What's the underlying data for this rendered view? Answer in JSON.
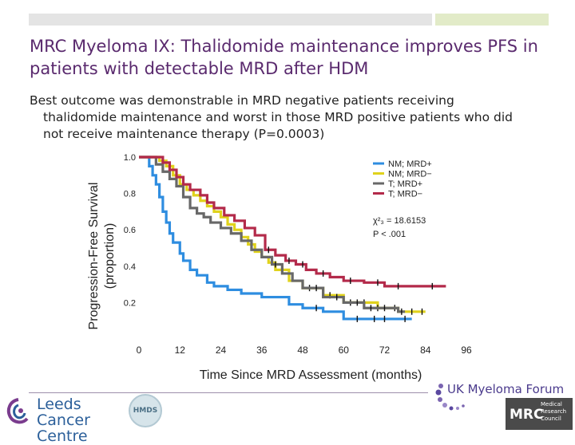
{
  "slide": {
    "title": "MRC Myeloma IX: Thalidomide maintenance improves PFS in patients with detectable MRD after HDM",
    "subtitle_lines": [
      "Best outcome was demonstrable in MRD negative patients receiving",
      "thalidomide maintenance and worst in those MRD positive patients who did",
      "not receive maintenance therapy (P=0.0003)"
    ]
  },
  "colors": {
    "nm_mrd_pos": "#2e8de0",
    "nm_mrd_neg": "#e0d21c",
    "t_mrd_pos": "#686868",
    "t_mrd_neg": "#b32a4a",
    "title": "#5a2a6e"
  },
  "chart_data": {
    "type": "line",
    "subtype": "kaplan-meier",
    "xlabel": "Time Since MRD Assessment (months)",
    "ylabel": [
      "Progression-Free Survival",
      "(proportion)"
    ],
    "xlim": [
      0,
      96
    ],
    "ylim": [
      0,
      1.0
    ],
    "x_ticks": [
      0,
      12,
      24,
      36,
      48,
      60,
      72,
      84,
      96
    ],
    "y_ticks": [
      0.2,
      0.4,
      0.6,
      0.8,
      1.0
    ],
    "x_tick_labels": [
      "0",
      "12",
      "24",
      "36",
      "48",
      "60",
      "72",
      "84",
      "96"
    ],
    "y_tick_labels": [
      "0.2",
      "0.4",
      "0.6",
      "0.8",
      "1.0"
    ],
    "legend_position": "top-right",
    "series": [
      {
        "name": "NM; MRD+",
        "color_key": "nm_mrd_pos",
        "points": [
          [
            0,
            1.0
          ],
          [
            2,
            1.0
          ],
          [
            3,
            0.95
          ],
          [
            4,
            0.9
          ],
          [
            5,
            0.85
          ],
          [
            6,
            0.78
          ],
          [
            7,
            0.7
          ],
          [
            8,
            0.64
          ],
          [
            9,
            0.58
          ],
          [
            10,
            0.53
          ],
          [
            12,
            0.47
          ],
          [
            13,
            0.43
          ],
          [
            15,
            0.38
          ],
          [
            17,
            0.35
          ],
          [
            20,
            0.31
          ],
          [
            22,
            0.29
          ],
          [
            26,
            0.27
          ],
          [
            30,
            0.25
          ],
          [
            36,
            0.23
          ],
          [
            44,
            0.19
          ],
          [
            48,
            0.17
          ],
          [
            54,
            0.15
          ],
          [
            60,
            0.11
          ],
          [
            80,
            0.11
          ]
        ],
        "censor_x": [
          52,
          64,
          69,
          72,
          78
        ]
      },
      {
        "name": "NM; MRD−",
        "color_key": "nm_mrd_neg",
        "points": [
          [
            0,
            1.0
          ],
          [
            4,
            1.0
          ],
          [
            6,
            0.98
          ],
          [
            8,
            0.95
          ],
          [
            10,
            0.9
          ],
          [
            12,
            0.85
          ],
          [
            14,
            0.82
          ],
          [
            16,
            0.79
          ],
          [
            18,
            0.76
          ],
          [
            20,
            0.73
          ],
          [
            22,
            0.7
          ],
          [
            24,
            0.67
          ],
          [
            26,
            0.63
          ],
          [
            28,
            0.6
          ],
          [
            30,
            0.56
          ],
          [
            32,
            0.52
          ],
          [
            34,
            0.48
          ],
          [
            36,
            0.45
          ],
          [
            38,
            0.42
          ],
          [
            40,
            0.38
          ],
          [
            44,
            0.32
          ],
          [
            48,
            0.28
          ],
          [
            54,
            0.24
          ],
          [
            60,
            0.2
          ],
          [
            70,
            0.17
          ],
          [
            76,
            0.15
          ],
          [
            84,
            0.15
          ]
        ],
        "censor_x": [
          50,
          56,
          62,
          66,
          70,
          75,
          80,
          83
        ]
      },
      {
        "name": "T; MRD+",
        "color_key": "t_mrd_pos",
        "points": [
          [
            0,
            1.0
          ],
          [
            3,
            1.0
          ],
          [
            5,
            0.96
          ],
          [
            7,
            0.92
          ],
          [
            9,
            0.88
          ],
          [
            11,
            0.84
          ],
          [
            13,
            0.78
          ],
          [
            15,
            0.72
          ],
          [
            17,
            0.69
          ],
          [
            19,
            0.67
          ],
          [
            21,
            0.64
          ],
          [
            24,
            0.61
          ],
          [
            27,
            0.58
          ],
          [
            30,
            0.54
          ],
          [
            33,
            0.49
          ],
          [
            36,
            0.45
          ],
          [
            39,
            0.41
          ],
          [
            42,
            0.36
          ],
          [
            45,
            0.32
          ],
          [
            48,
            0.28
          ],
          [
            54,
            0.23
          ],
          [
            60,
            0.2
          ],
          [
            66,
            0.17
          ],
          [
            76,
            0.15
          ],
          [
            78,
            0.15
          ]
        ],
        "censor_x": [
          40,
          52,
          58,
          64,
          68,
          72,
          77
        ]
      },
      {
        "name": "T; MRD−",
        "color_key": "t_mrd_neg",
        "points": [
          [
            0,
            1.0
          ],
          [
            5,
            1.0
          ],
          [
            7,
            0.97
          ],
          [
            9,
            0.93
          ],
          [
            11,
            0.89
          ],
          [
            13,
            0.85
          ],
          [
            15,
            0.82
          ],
          [
            18,
            0.79
          ],
          [
            20,
            0.75
          ],
          [
            22,
            0.72
          ],
          [
            25,
            0.68
          ],
          [
            28,
            0.65
          ],
          [
            31,
            0.61
          ],
          [
            34,
            0.57
          ],
          [
            37,
            0.49
          ],
          [
            40,
            0.46
          ],
          [
            43,
            0.43
          ],
          [
            46,
            0.41
          ],
          [
            49,
            0.38
          ],
          [
            52,
            0.36
          ],
          [
            56,
            0.34
          ],
          [
            60,
            0.32
          ],
          [
            66,
            0.31
          ],
          [
            72,
            0.29
          ],
          [
            80,
            0.29
          ],
          [
            90,
            0.29
          ]
        ],
        "censor_x": [
          38,
          44,
          48,
          54,
          62,
          70,
          76,
          86
        ]
      }
    ],
    "annotations": {
      "stat_line": "χ²₃ = 18.6153",
      "p_line": "P < .001"
    }
  },
  "footer": {
    "leeds_text_line1": "Leeds Cancer",
    "leeds_text_line2": "Centre",
    "hmds_text": "HMDS",
    "myeloma_text": "UK Myeloma Forum",
    "mrc_text": "MRC",
    "mrc_small_lines": [
      "Medical",
      "Research",
      "Council"
    ]
  }
}
